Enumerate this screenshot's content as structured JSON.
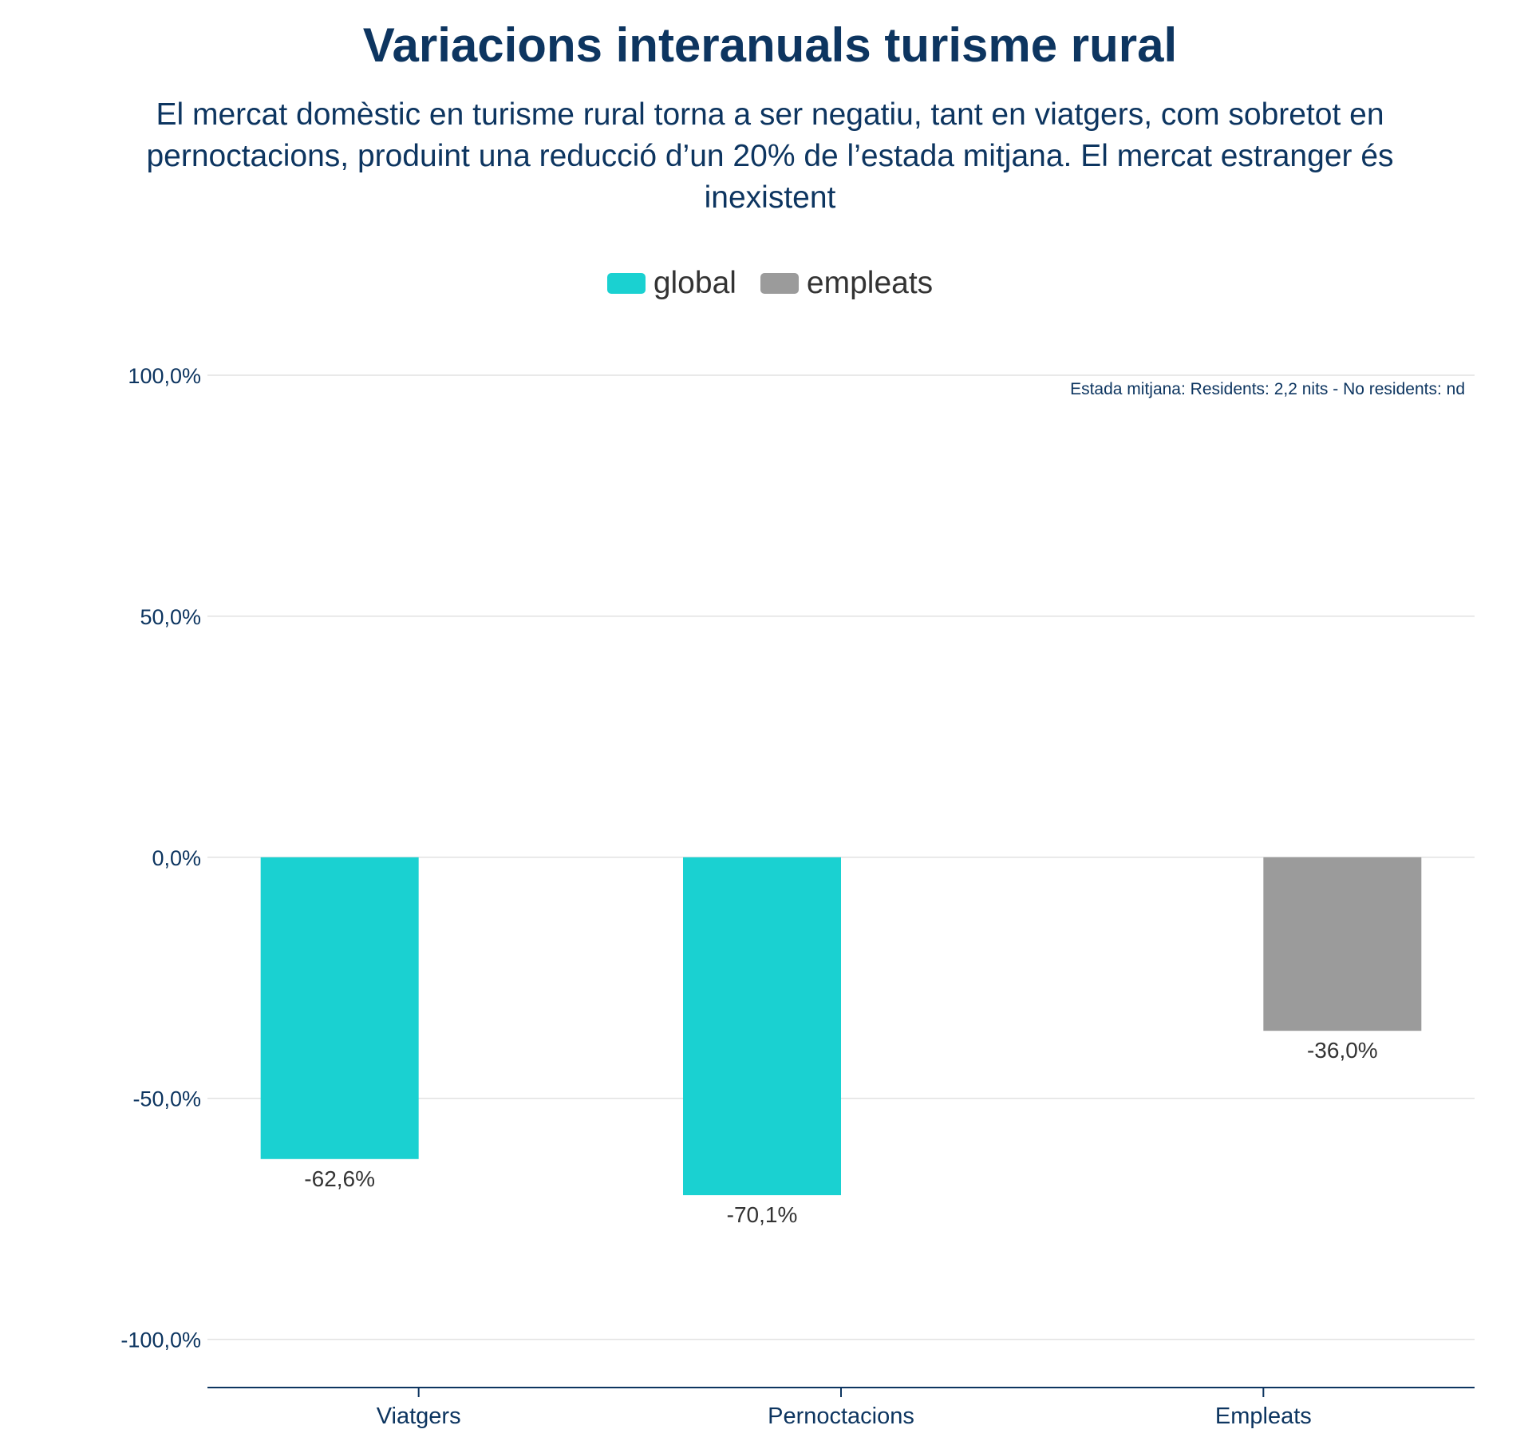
{
  "chart_data": {
    "type": "bar",
    "title": "Variacions interanuals turisme rural",
    "subtitle": "El mercat domèstic en turisme rural torna a ser negatiu, tant en viatgers, com sobretot en pernoctacions, produint una reducció d’un 20% de l’estada mitjana. El mercat estranger és inexistent",
    "categories": [
      "Viatgers",
      "Pernoctacions",
      "Empleats"
    ],
    "series": [
      {
        "name": "global",
        "color": "#1ad1d1",
        "values": [
          -62.6,
          -70.1,
          null
        ],
        "labels": [
          "-62,6%",
          "-70,1%",
          ""
        ]
      },
      {
        "name": "empleats",
        "color": "#9b9b9b",
        "values": [
          null,
          null,
          -36.0
        ],
        "labels": [
          "",
          "",
          "-36,0%"
        ]
      }
    ],
    "legend": [
      {
        "name": "global",
        "color": "#1ad1d1"
      },
      {
        "name": "empleats",
        "color": "#9b9b9b"
      }
    ],
    "ylim": [
      -110,
      100
    ],
    "yticks": [
      100,
      50,
      0,
      -50,
      -100
    ],
    "ytick_labels": [
      "100,0%",
      "50,0%",
      "0,0%",
      "-50,0%",
      "-100,0%"
    ],
    "annotation": "Estada mitjana: Residents: 2,2 nits - No residents: nd",
    "xlabel": "",
    "ylabel": "",
    "grid": true,
    "legend_position": "top-center"
  }
}
